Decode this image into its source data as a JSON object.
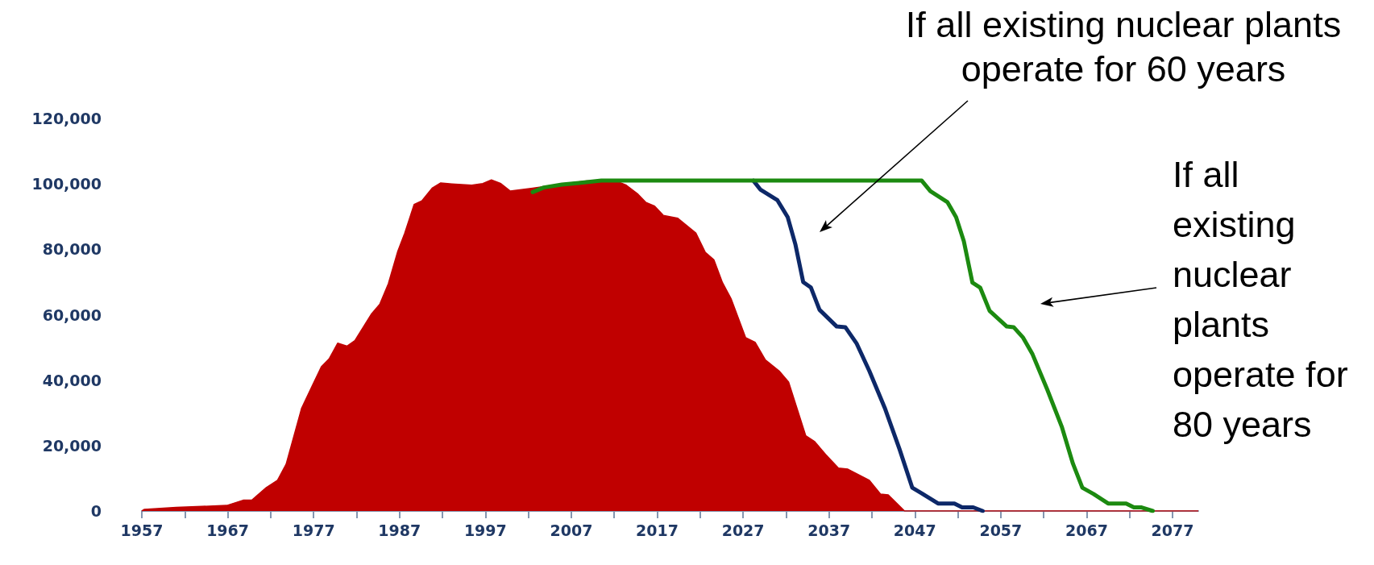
{
  "chart_data": {
    "type": "line",
    "marker": "none",
    "grid": false,
    "xlim": [
      1957,
      2080
    ],
    "xticks": [
      1957,
      {
        "value": 1962,
        "label": null
      },
      1967,
      {
        "value": 1972,
        "label": null
      },
      1977,
      {
        "value": 1982,
        "label": null
      },
      1987,
      {
        "value": 1992,
        "label": null
      },
      1997,
      {
        "value": 2002,
        "label": null
      },
      2007,
      {
        "value": 2012,
        "label": null
      },
      2017,
      {
        "value": 2022,
        "label": null
      },
      2027,
      {
        "value": 2032,
        "label": null
      },
      2037,
      {
        "value": 2042,
        "label": null
      },
      2047,
      {
        "value": 2052,
        "label": null
      },
      2057,
      {
        "value": 2062,
        "label": null
      },
      2067,
      {
        "value": 2072,
        "label": null
      },
      2077
    ],
    "ylim": [
      0,
      120000
    ],
    "yticks": [
      0,
      {
        "value": 20000,
        "label": "20,000"
      },
      {
        "value": 40000,
        "label": "40,000"
      },
      {
        "value": 60000,
        "label": "60,000"
      },
      {
        "value": 80000,
        "label": "80,000"
      },
      {
        "value": 100000,
        "label": "100,000"
      },
      {
        "value": 120000,
        "label": "120,000"
      }
    ],
    "annotations": [
      "If all existing nuclear plants operate for 60 years",
      "If all existing nuclear plants operate for 80 years"
    ],
    "series": [
      {
        "type": "area",
        "color": "#c00000",
        "x": [
          1957,
          1957.3,
          1961,
          1964,
          1966.9,
          1968.8,
          1969.8,
          1971.5,
          1972.8,
          1973.8,
          1975.6,
          1976.7,
          1977.9,
          1978.8,
          1979.8,
          1980.9,
          1981.8,
          1983.7,
          1984.7,
          1985.7,
          1986.8,
          1987.6,
          1988.7,
          1989.6,
          1990.8,
          1991.8,
          1993.1,
          1995.4,
          1996.7,
          1997.7,
          1998.8,
          1999.9,
          2002.5,
          2005.9,
          2008.8,
          2012.2,
          2013.4,
          2014.7,
          2015.7,
          2016.7,
          2017.7,
          2019.4,
          2021.5,
          2022.6,
          2023.6,
          2024.6,
          2025.6,
          2027.3,
          2028.4,
          2029.6,
          2031.2,
          2032.3,
          2034.3,
          2035.3,
          2036.6,
          2038.1,
          2039.2,
          2041.7,
          2043,
          2043.9,
          2045.8,
          2080
        ],
        "values": [
          0,
          500,
          1100,
          1400,
          1700,
          3300,
          3300,
          7200,
          9400,
          14300,
          31400,
          37500,
          44100,
          46500,
          51300,
          50400,
          52100,
          60100,
          63200,
          69500,
          79400,
          84900,
          93700,
          94800,
          98700,
          100300,
          100000,
          99600,
          100100,
          101200,
          100100,
          97800,
          98700,
          100000,
          100900,
          100900,
          99600,
          97000,
          94300,
          93200,
          90400,
          89500,
          85000,
          79100,
          76800,
          69800,
          64900,
          53000,
          51600,
          46200,
          42800,
          39400,
          23000,
          21300,
          17300,
          13100,
          12800,
          9400,
          5200,
          4900,
          0,
          0
        ]
      },
      {
        "color": "#0d2868",
        "x": [
          2028.2,
          2029,
          2031,
          2032.2,
          2033.1,
          2034,
          2034.9,
          2035.9,
          2037.9,
          2038.9,
          2040.2,
          2041.7,
          2043.5,
          2045.2,
          2046.7,
          2047.8,
          2049.7,
          2051.6,
          2052.5,
          2053.8,
          2054.9
        ],
        "values": [
          101000,
          98300,
          95000,
          89800,
          81400,
          70000,
          68300,
          61500,
          56400,
          56200,
          51300,
          42800,
          31500,
          19000,
          7100,
          5400,
          2300,
          2300,
          1100,
          1100,
          0
        ]
      },
      {
        "color": "#1c8a10",
        "x": [
          2002.5,
          2003.8,
          2005.9,
          2007.9,
          2010.5,
          2047.8,
          2048.8,
          2050.8,
          2051.8,
          2052.7,
          2053.7,
          2054.6,
          2055.7,
          2057.7,
          2058.5,
          2059.6,
          2060.7,
          2062.4,
          2064.1,
          2065.4,
          2066.5,
          2067.8,
          2069.5,
          2071.6,
          2072.5,
          2073.4,
          2074.7
        ],
        "values": [
          97500,
          98900,
          99800,
          100300,
          101000,
          101000,
          97800,
          94400,
          89800,
          82500,
          69800,
          68300,
          61200,
          56400,
          56200,
          53000,
          47900,
          37200,
          25800,
          14500,
          7100,
          5200,
          2300,
          2300,
          1100,
          1100,
          0
        ]
      }
    ]
  }
}
